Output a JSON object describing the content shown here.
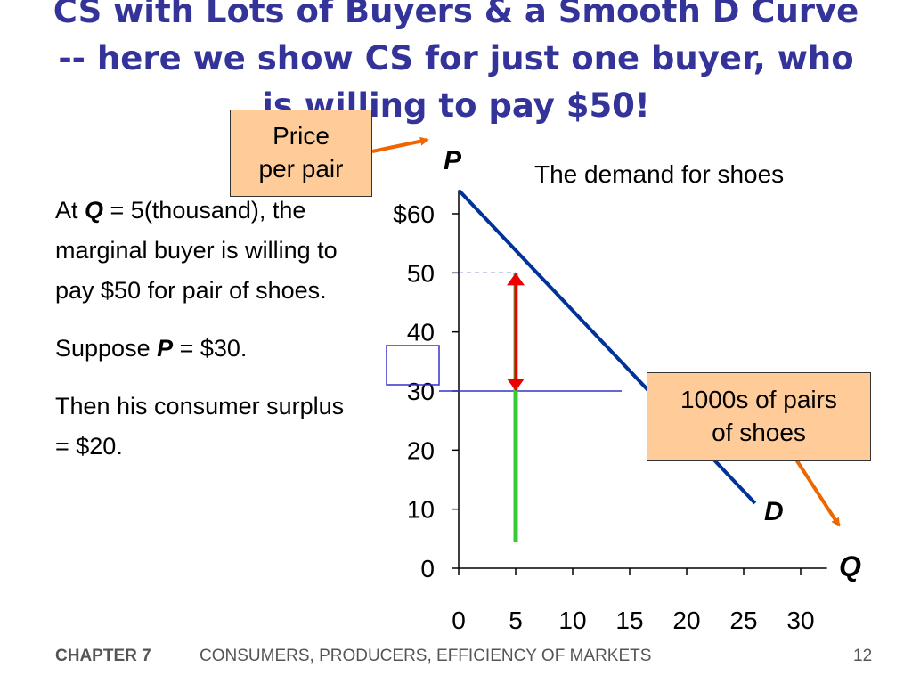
{
  "title": {
    "lines": [
      "CS with Lots of Buyers & a Smooth D Curve",
      "-- here we show CS for just one buyer, who",
      "is willing to pay $50!"
    ]
  },
  "body_text": {
    "p1_a": "At ",
    "p1_q": "Q",
    "p1_b": " = 5(thousand), the marginal buyer is willing to pay $50 for pair of shoes.",
    "p2_a": "Suppose ",
    "p2_p": "P",
    "p2_b": " = $30.",
    "p3": "Then his consumer surplus = $20."
  },
  "callouts": {
    "price": [
      "Price",
      "per pair"
    ],
    "quantity": [
      "1000s of pairs",
      "of shoes"
    ]
  },
  "footer": {
    "chapter": "CHAPTER 7",
    "subtitle": "CONSUMERS, PRODUCERS, EFFICIENCY OF MARKETS",
    "page": "12"
  },
  "chart_data": {
    "type": "line",
    "title": "The demand for shoes",
    "xlabel": "Q",
    "ylabel": "P",
    "x_ticks": [
      0,
      5,
      10,
      15,
      20,
      25,
      30
    ],
    "x_tick_labels": [
      "0",
      "5",
      "10",
      "15",
      "20",
      "25",
      "30"
    ],
    "y_ticks": [
      0,
      10,
      20,
      30,
      40,
      50,
      60
    ],
    "y_tick_labels": [
      "0",
      "10",
      "20",
      "30",
      "40",
      "50",
      "$60"
    ],
    "xlim": [
      0,
      32
    ],
    "ylim": [
      0,
      64
    ],
    "series": [
      {
        "name": "D",
        "x": [
          0,
          26
        ],
        "y": [
          64,
          11
        ],
        "color": "#003399"
      }
    ],
    "willingness_to_pay": {
      "q": 5,
      "value": 50
    },
    "price": 30,
    "consumer_surplus": 20,
    "colors": {
      "axis": "#000000",
      "demand": "#003399",
      "reference_lines": "#3333cc",
      "wtp_bar": "#33cc33",
      "surplus_arrow": "#ee0000",
      "callout_arrow": "#ee6600",
      "callout_fill": "#ffcc99"
    }
  }
}
